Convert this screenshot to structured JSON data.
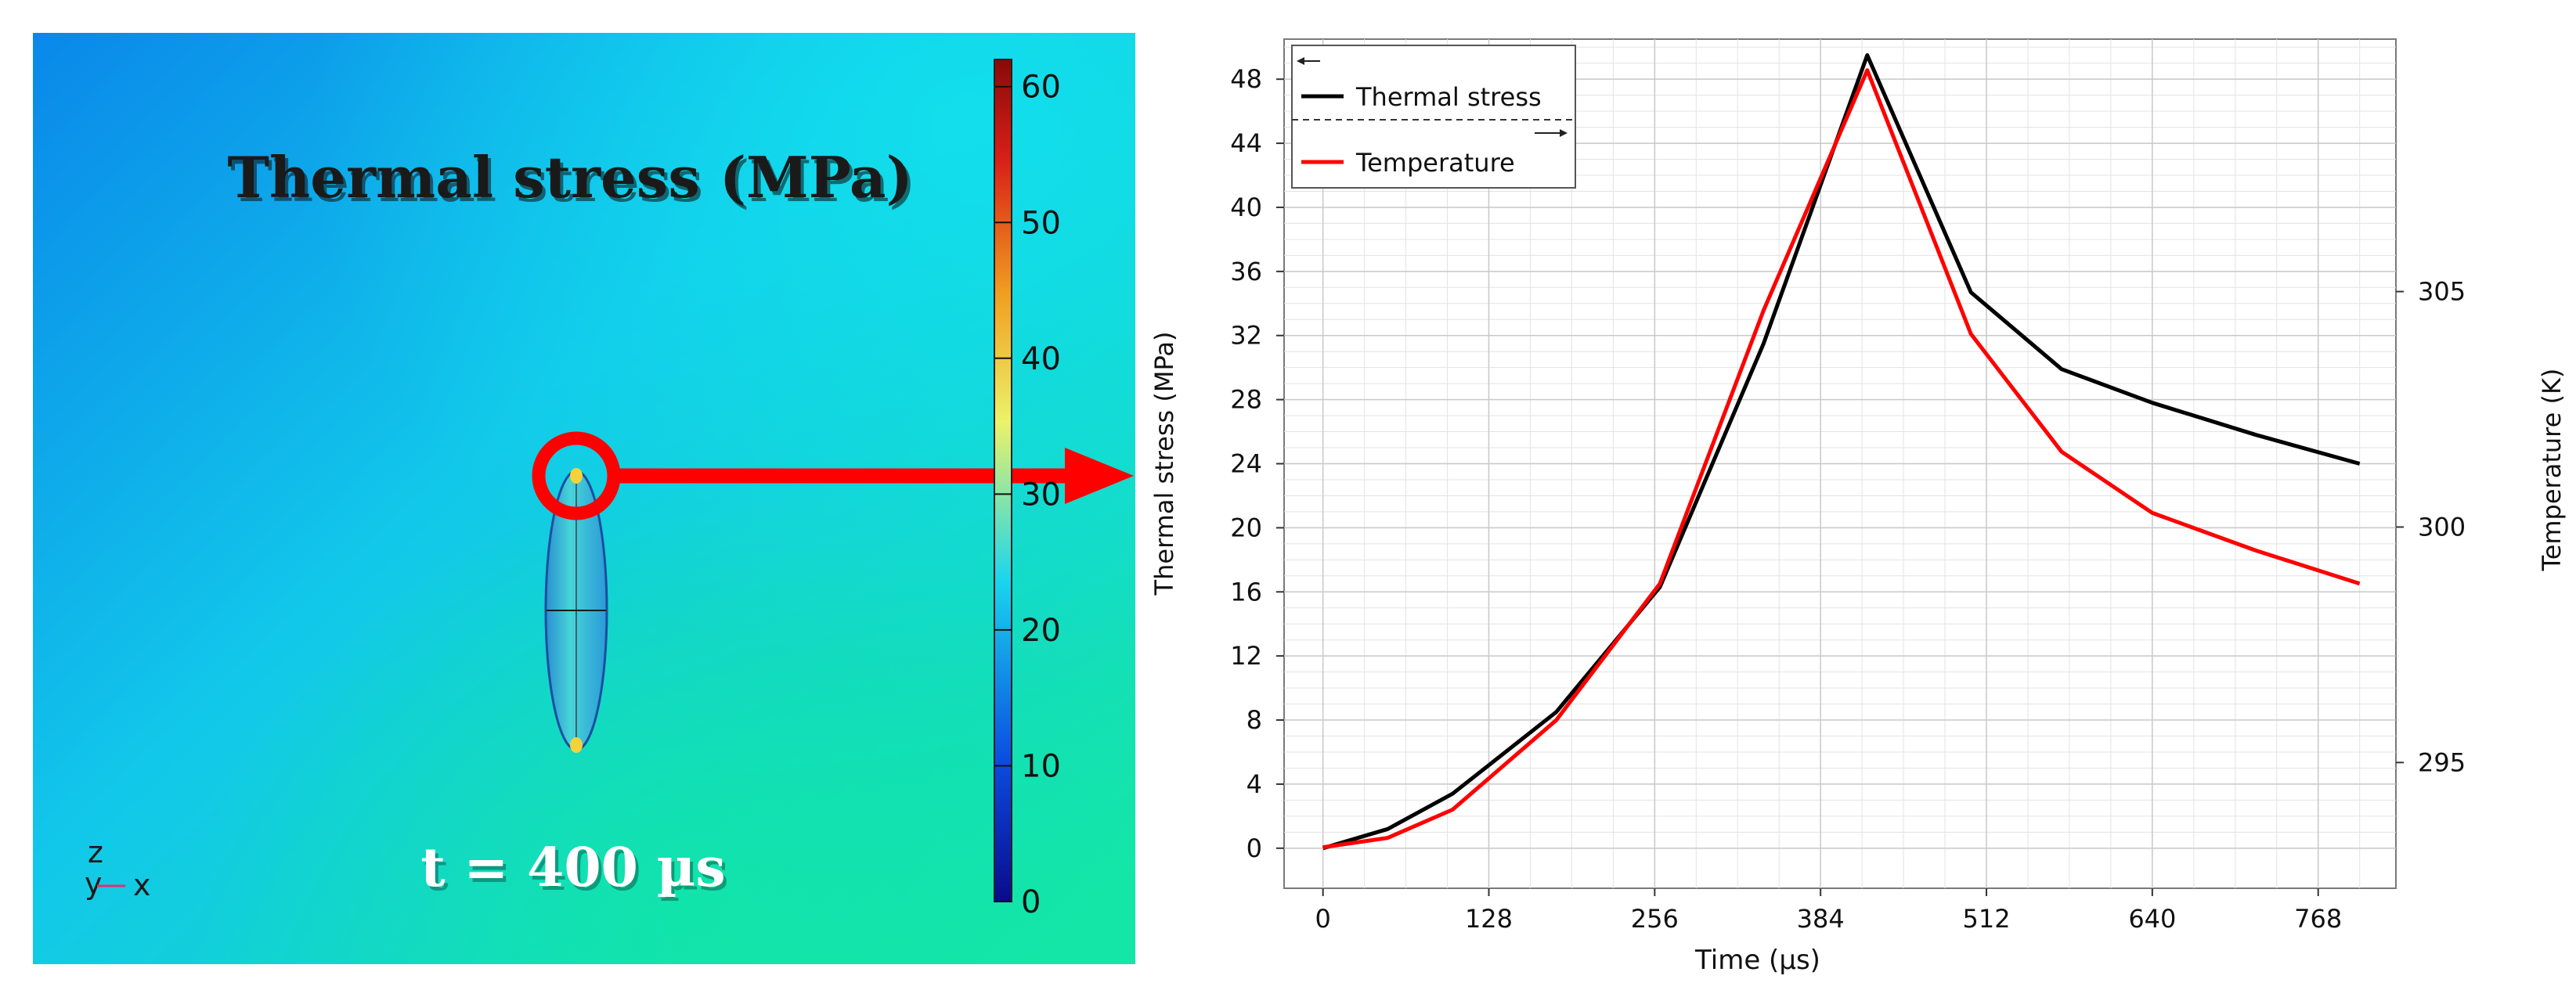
{
  "sim_panel": {
    "title": "Thermal stress (MPa)",
    "time_label": "t = 400 µs",
    "axis_triad": {
      "z": "z",
      "y": "y",
      "x": "x"
    },
    "colorbar": {
      "min": 0,
      "max": 62,
      "ticks": [
        "0",
        "10",
        "20",
        "30",
        "40",
        "50",
        "60"
      ],
      "colors": [
        "#0a0a8c",
        "#0b4ee0",
        "#19d5ee",
        "#ecf26a",
        "#f0a020",
        "#d82018",
        "#8a0a08"
      ]
    },
    "field_colors": {
      "top_left": "#0a88ea",
      "top_right": "#12dcee",
      "bottom_left": "#12c8ea",
      "bottom_right": "#14e6a8"
    },
    "highlight_color": "#ff0000"
  },
  "chart_data": {
    "type": "line",
    "xlabel": "Time (µs)",
    "ylabel": "Thermal stress (MPa)",
    "y2label": "Temperature (K)",
    "xlim": [
      -30,
      828
    ],
    "ylim": [
      -2.5,
      50.5
    ],
    "y2lim": [
      292.33,
      310.36
    ],
    "x_ticks": [
      0,
      128,
      256,
      384,
      512,
      640,
      768
    ],
    "y_ticks": [
      0,
      4,
      8,
      12,
      16,
      20,
      24,
      28,
      32,
      36,
      40,
      44,
      48
    ],
    "y2_ticks": [
      295,
      300,
      305
    ],
    "grid": true,
    "legend": {
      "position": "top-left",
      "entries": [
        {
          "label": "Thermal stress",
          "color": "#000000",
          "axis_arrow": "←"
        },
        {
          "label": "Temperature",
          "color": "#ff0000",
          "axis_arrow": "→"
        }
      ]
    },
    "series": [
      {
        "name": "Thermal stress",
        "axis": "left",
        "color": "#000000",
        "x": [
          0,
          50,
          100,
          180,
          260,
          340,
          420,
          500,
          570,
          640,
          720,
          800
        ],
        "y": [
          0,
          1.2,
          3.4,
          8.5,
          16.3,
          31.5,
          49.5,
          34.7,
          29.9,
          27.8,
          25.8,
          24.0
        ]
      },
      {
        "name": "Temperature",
        "axis": "right",
        "color": "#ff0000",
        "x": [
          0,
          50,
          100,
          180,
          260,
          340,
          420,
          500,
          570,
          640,
          720,
          800
        ],
        "y": [
          293.2,
          293.4,
          294.0,
          295.9,
          298.8,
          304.6,
          309.7,
          304.1,
          301.6,
          300.3,
          299.5,
          298.8
        ]
      }
    ]
  }
}
